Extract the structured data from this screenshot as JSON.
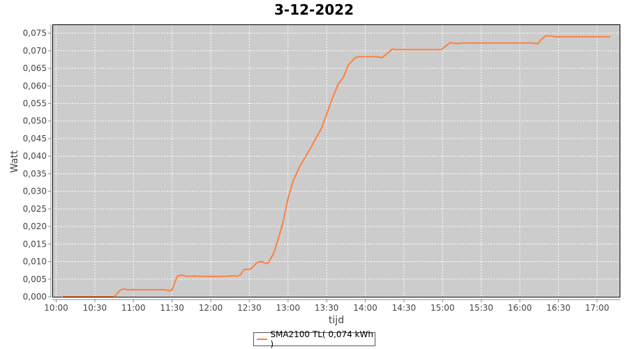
{
  "chart_data": {
    "type": "line",
    "title": "3-12-2022",
    "xlabel": "tijd",
    "ylabel": "Watt",
    "xlim": [
      "09:57",
      "17:18"
    ],
    "ylim": [
      0,
      0.0775
    ],
    "x_ticks": [
      "10:00",
      "10:30",
      "11:00",
      "11:30",
      "12:00",
      "12:30",
      "13:00",
      "13:30",
      "14:00",
      "14:30",
      "15:00",
      "15:30",
      "16:00",
      "16:30",
      "17:00"
    ],
    "y_ticks": [
      "0,000",
      "0,005",
      "0,010",
      "0,015",
      "0,020",
      "0,025",
      "0,030",
      "0,035",
      "0,040",
      "0,045",
      "0,050",
      "0,055",
      "0,060",
      "0,065",
      "0,070",
      "0,075"
    ],
    "grid": true,
    "legend_position": "bottom",
    "series": [
      {
        "name": "SMA2100 TL( 0,074 kWh )",
        "color": "#ff7f3f",
        "x": [
          "10:05",
          "10:45",
          "10:50",
          "10:53",
          "10:55",
          "11:24",
          "11:28",
          "11:30",
          "11:34",
          "11:37",
          "11:41",
          "11:48",
          "11:53",
          "12:12",
          "12:18",
          "12:20",
          "12:23",
          "12:26",
          "12:30",
          "12:32",
          "12:36",
          "12:40",
          "12:43",
          "12:45",
          "12:49",
          "12:52",
          "12:56",
          "13:00",
          "13:04",
          "13:09",
          "13:17",
          "13:26",
          "13:31",
          "13:35",
          "13:39",
          "13:43",
          "13:47",
          "13:52",
          "13:55",
          "14:09",
          "14:13",
          "14:17",
          "14:21",
          "14:24",
          "14:57",
          "14:59",
          "15:02",
          "15:06",
          "15:11",
          "15:14",
          "16:08",
          "16:14",
          "16:16",
          "16:20",
          "16:25",
          "16:27",
          "17:10"
        ],
        "y": [
          0,
          0,
          0.002,
          0.0022,
          0.002,
          0.002,
          0.0017,
          0.002,
          0.0058,
          0.0062,
          0.0058,
          0.0059,
          0.0058,
          0.0058,
          0.006,
          0.0058,
          0.0062,
          0.0078,
          0.0078,
          0.0082,
          0.0098,
          0.01,
          0.0094,
          0.0098,
          0.0125,
          0.016,
          0.021,
          0.028,
          0.033,
          0.037,
          0.042,
          0.048,
          0.053,
          0.057,
          0.0605,
          0.0625,
          0.066,
          0.068,
          0.0683,
          0.0683,
          0.068,
          0.0692,
          0.0705,
          0.0703,
          0.0703,
          0.0703,
          0.0712,
          0.0723,
          0.072,
          0.0722,
          0.0722,
          0.072,
          0.073,
          0.0742,
          0.0742,
          0.074,
          0.074
        ]
      }
    ]
  }
}
